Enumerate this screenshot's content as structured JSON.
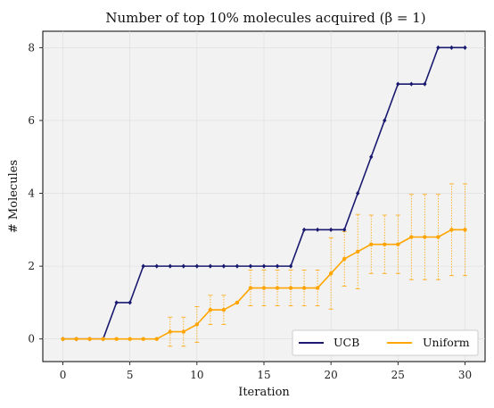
{
  "chart_data": {
    "type": "line",
    "title": "Number of top 10% molecules acquired (β = 1)",
    "xlabel": "Iteration",
    "ylabel": "# Molecules",
    "xlim": [
      -1.5,
      31.5
    ],
    "ylim": [
      -0.62,
      8.45
    ],
    "xticks": [
      0,
      5,
      10,
      15,
      20,
      25,
      30
    ],
    "yticks": [
      0,
      2,
      4,
      6,
      8
    ],
    "grid": true,
    "legend_position": "bottom-right",
    "background": "#f2f2f2",
    "x": [
      0,
      1,
      2,
      3,
      4,
      5,
      6,
      7,
      8,
      9,
      10,
      11,
      12,
      13,
      14,
      15,
      16,
      17,
      18,
      19,
      20,
      21,
      22,
      23,
      24,
      25,
      26,
      27,
      28,
      29,
      30
    ],
    "series": [
      {
        "name": "UCB",
        "color": "#191970",
        "values": [
          0,
          0,
          0,
          0,
          1,
          1,
          2,
          2,
          2,
          2,
          2,
          2,
          2,
          2,
          2,
          2,
          2,
          2,
          3,
          3,
          3,
          3,
          4,
          5,
          6,
          7,
          7,
          7,
          8,
          8,
          8
        ]
      },
      {
        "name": "Uniform",
        "color": "#ffa500",
        "values": [
          0,
          0,
          0,
          0,
          0,
          0,
          0,
          0,
          0.2,
          0.2,
          0.4,
          0.8,
          0.8,
          1.0,
          1.4,
          1.4,
          1.4,
          1.4,
          1.4,
          1.4,
          1.8,
          2.2,
          2.4,
          2.6,
          2.6,
          2.6,
          2.8,
          2.8,
          2.8,
          3.0,
          3.0
        ],
        "error": [
          0,
          0,
          0,
          0,
          0,
          0,
          0,
          0,
          0.4,
          0.4,
          0.49,
          0.4,
          0.4,
          0,
          0.49,
          0.49,
          0.49,
          0.49,
          0.49,
          0.49,
          0.98,
          0.75,
          1.02,
          0.8,
          0.8,
          0.8,
          1.17,
          1.17,
          1.17,
          1.26,
          1.26
        ]
      }
    ]
  }
}
